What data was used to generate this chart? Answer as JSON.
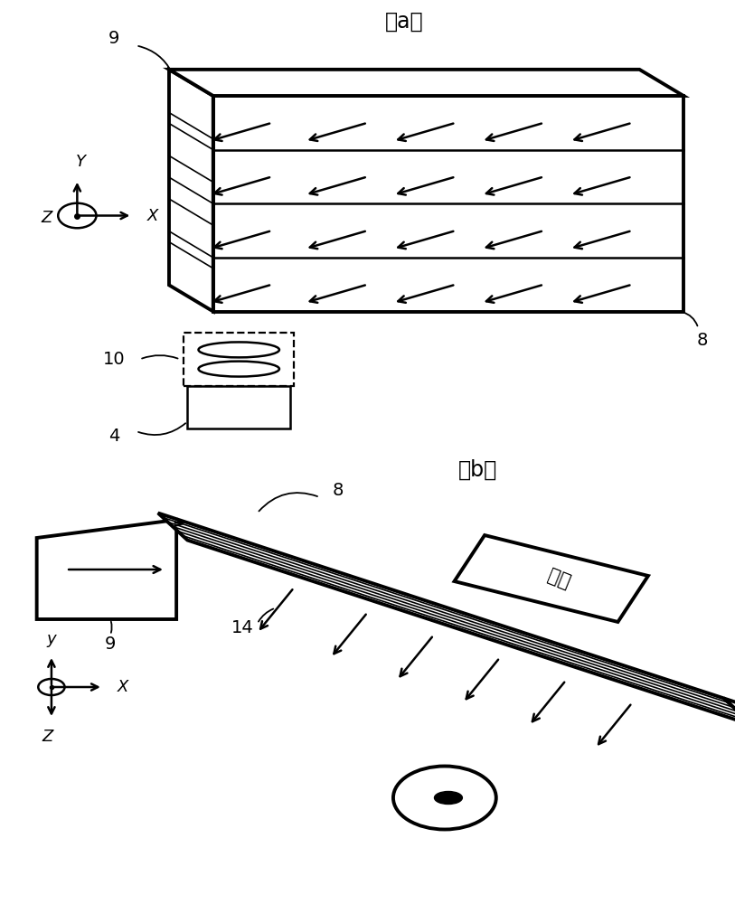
{
  "title_a": "（a）",
  "title_b": "（b）",
  "bg_color": "#ffffff",
  "lc": "#000000",
  "lw_thick": 2.8,
  "lw_med": 1.8,
  "lw_thin": 1.2,
  "label_9_a": "9",
  "label_8_a": "8",
  "label_10": "10",
  "label_4": "4",
  "label_8_b": "8",
  "label_9_b": "9",
  "label_14": "14",
  "label_xu": "虚像"
}
